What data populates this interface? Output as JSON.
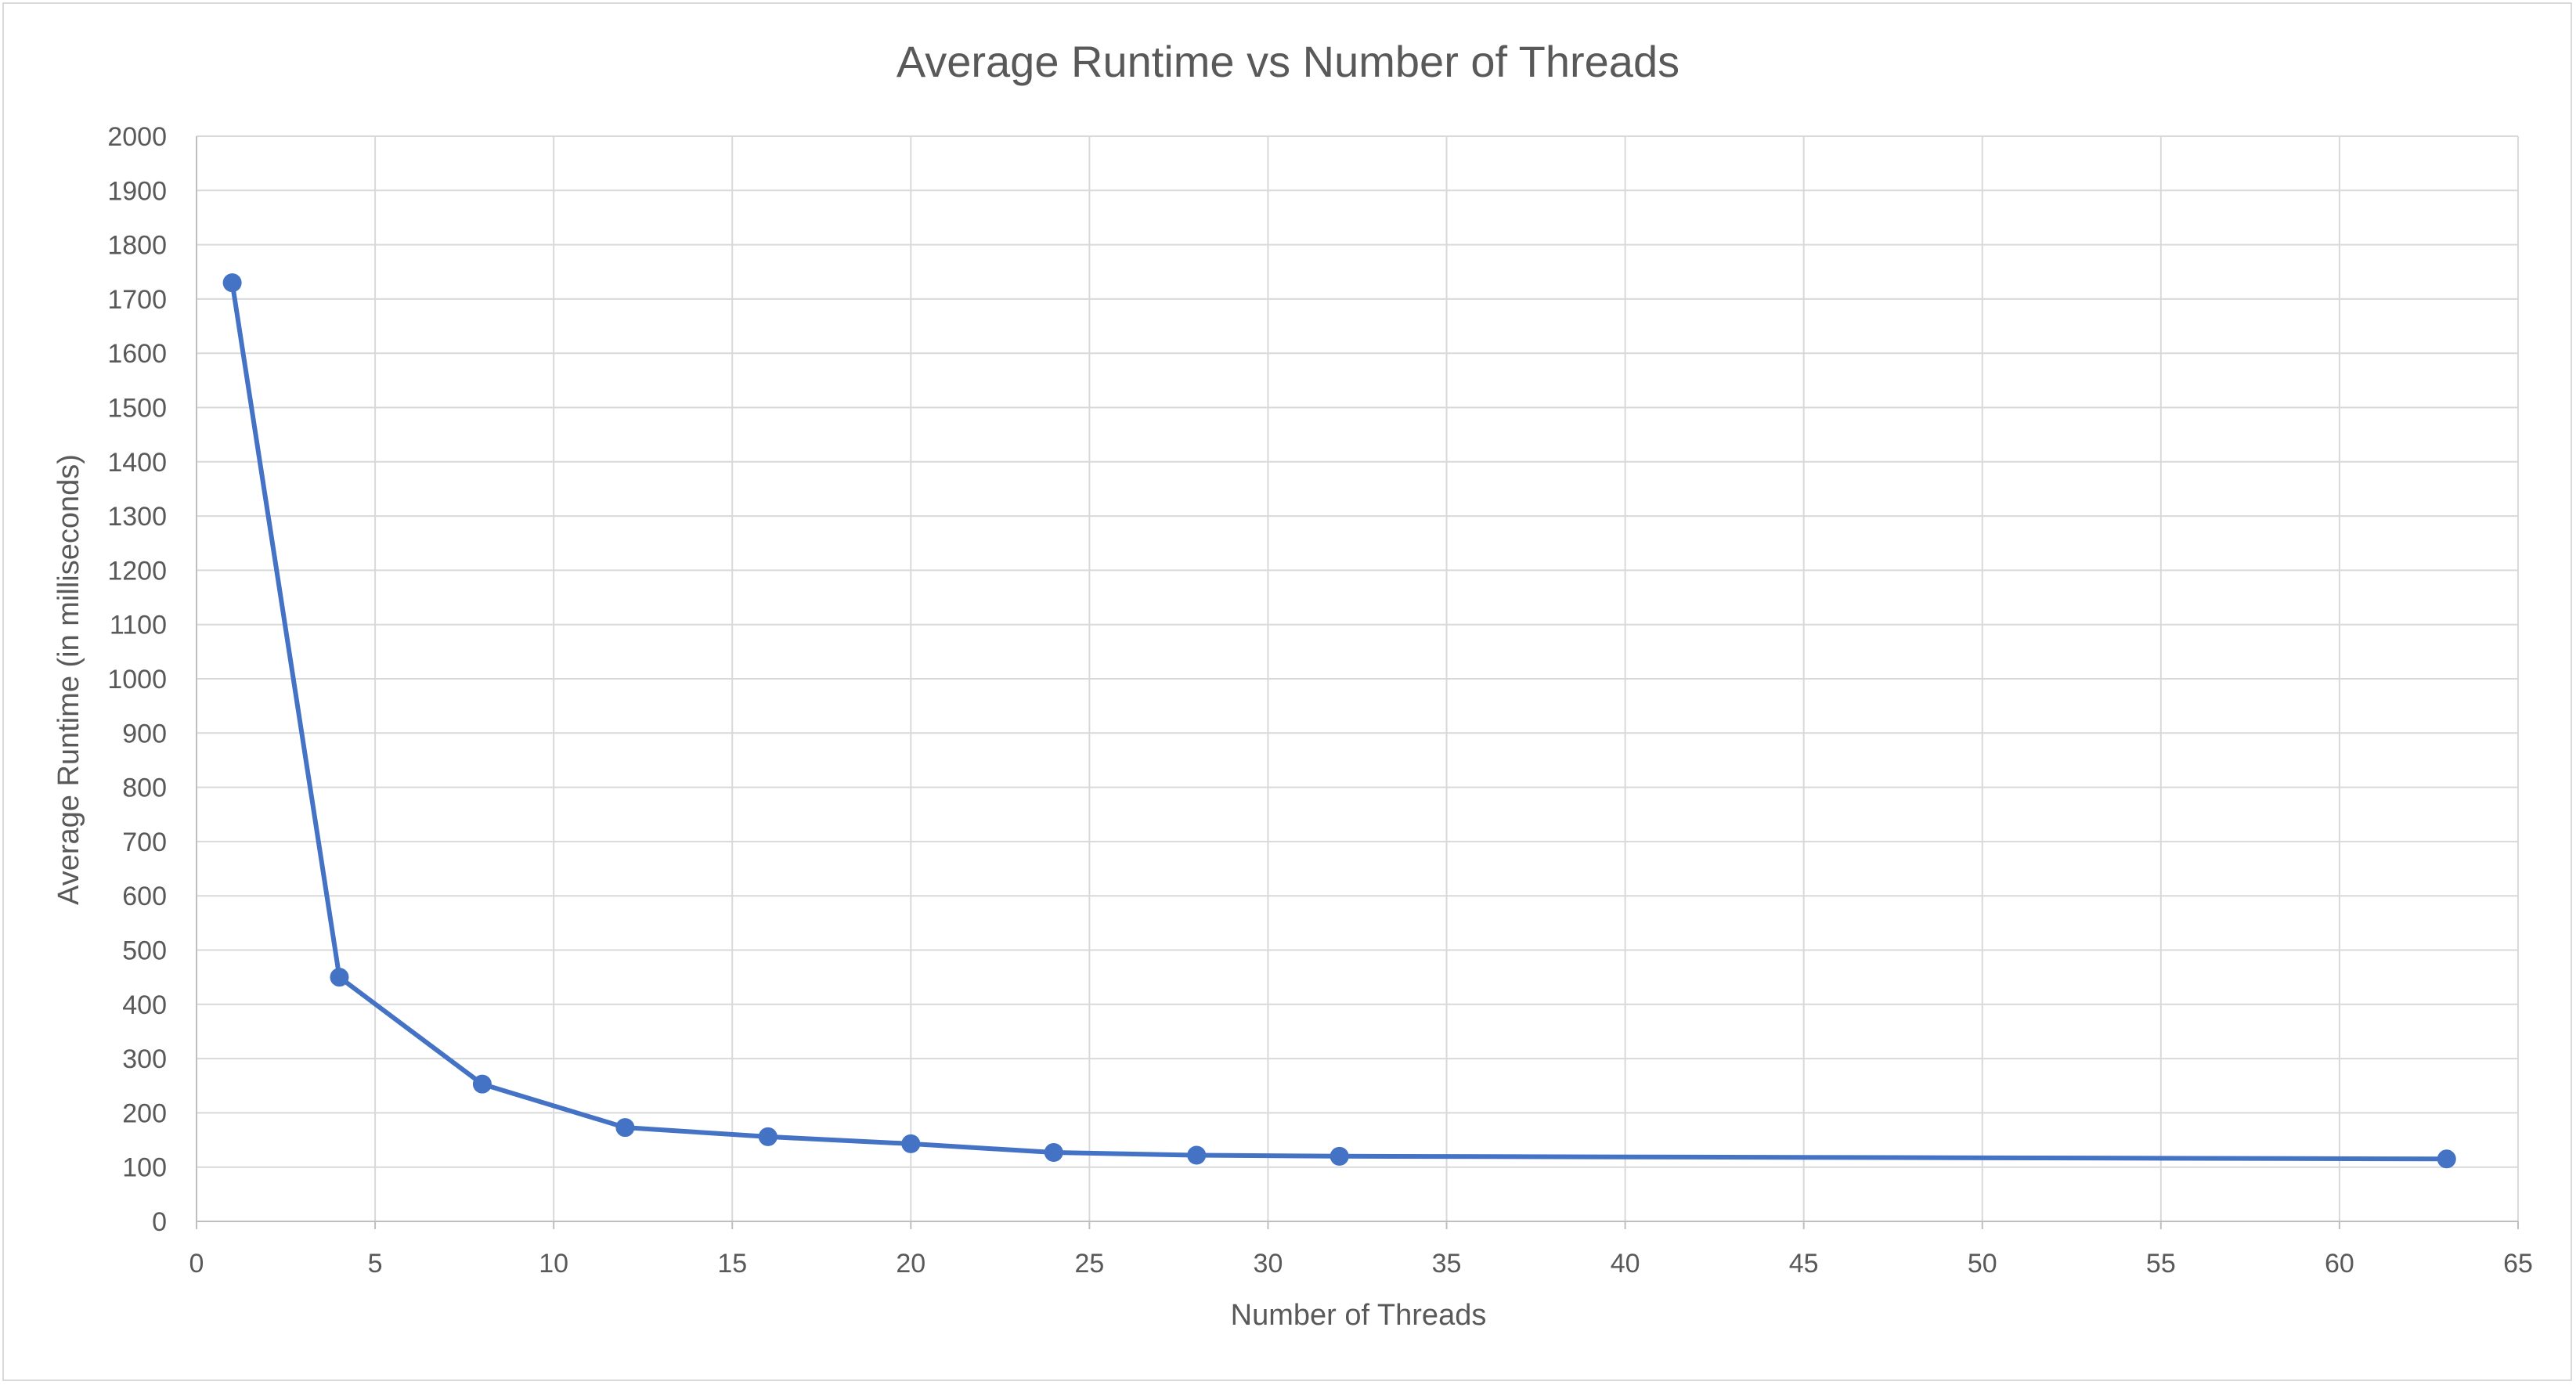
{
  "chart_data": {
    "type": "scatter",
    "title": "Average Runtime vs Number of Threads",
    "xlabel": "Number of Threads",
    "ylabel": "Average Runtime (in milliseconds)",
    "xlim": [
      0,
      65
    ],
    "ylim": [
      0,
      2000
    ],
    "x_ticks": [
      0,
      5,
      10,
      15,
      20,
      25,
      30,
      35,
      40,
      45,
      50,
      55,
      60,
      65
    ],
    "y_ticks": [
      0,
      100,
      200,
      300,
      400,
      500,
      600,
      700,
      800,
      900,
      1000,
      1100,
      1200,
      1300,
      1400,
      1500,
      1600,
      1700,
      1800,
      1900,
      2000
    ],
    "grid": true,
    "series": [
      {
        "x": [
          1,
          4,
          8,
          12,
          16,
          20,
          24,
          28,
          32,
          63
        ],
        "y": [
          1730,
          450,
          253,
          173,
          156,
          143,
          127,
          122,
          120,
          115
        ]
      }
    ],
    "line_color": "#4472c4",
    "grid_color": "#d9d9d9",
    "text_color": "#595959"
  }
}
